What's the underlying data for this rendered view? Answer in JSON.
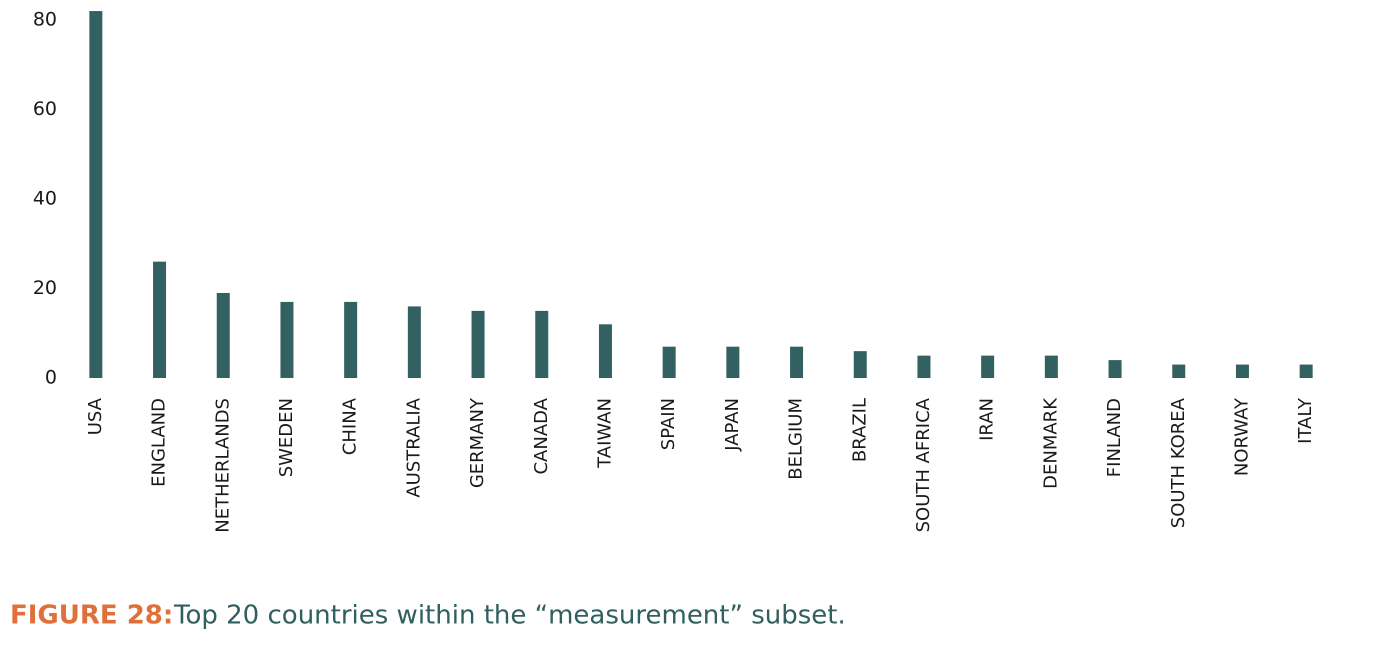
{
  "chart_data": {
    "type": "bar",
    "caption_label": "FIGURE 28:",
    "caption": "Top 20 countries within the “measurement” subset.",
    "categories": [
      "USA",
      "ENGLAND",
      "NETHERLANDS",
      "SWEDEN",
      "CHINA",
      "AUSTRALIA",
      "GERMANY",
      "CANADA",
      "TAIWAN",
      "SPAIN",
      "JAPAN",
      "BELGIUM",
      "BRAZIL",
      "SOUTH AFRICA",
      "IRAN",
      "DENMARK",
      "FINLAND",
      "SOUTH KOREA",
      "NORWAY",
      "ITALY"
    ],
    "values": [
      82,
      26,
      19,
      17,
      17,
      16,
      15,
      15,
      12,
      7,
      7,
      7,
      6,
      5,
      5,
      5,
      4,
      3,
      3,
      3
    ],
    "color": "#336060",
    "ylim": [
      0,
      82
    ],
    "yticks": [
      0,
      20,
      40,
      60,
      80
    ],
    "grid": false
  }
}
